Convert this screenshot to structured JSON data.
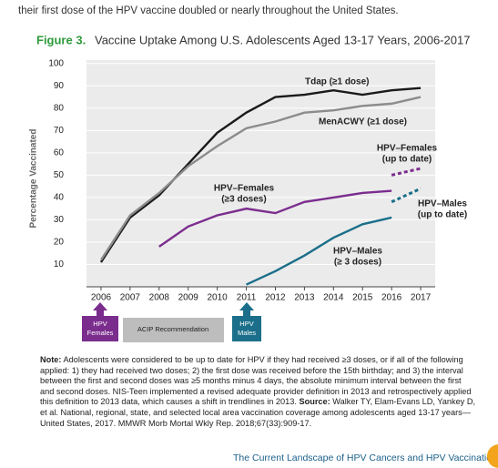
{
  "top_text": [
    "their first dose of the HPV vaccine doubled or nearly",
    "throughout the United States."
  ],
  "chart_data": {
    "type": "line",
    "title_prefix": "Figure 3.",
    "title": "Vaccine Uptake Among U.S. Adolescents Aged 13-17 Years, 2006-2017",
    "y_label": "Percentage Vaccinated",
    "x": [
      2006,
      2007,
      2008,
      2009,
      2010,
      2011,
      2012,
      2013,
      2014,
      2015,
      2016,
      2017
    ],
    "xlim": [
      2005.5,
      2017.5
    ],
    "xticks": [
      2006,
      2007,
      2008,
      2009,
      2010,
      2011,
      2012,
      2013,
      2014,
      2015,
      2016,
      2017
    ],
    "ylim": [
      0,
      100
    ],
    "yticks": [
      10,
      20,
      30,
      40,
      50,
      60,
      70,
      80,
      90,
      100
    ],
    "grid": true,
    "series": [
      {
        "label": [
          "Tdap (≥1 dose)"
        ],
        "color": "#1a1a1a",
        "dashed": false,
        "values": [
          11,
          31,
          41,
          55,
          69,
          78,
          85,
          86,
          88,
          86,
          88,
          89
        ]
      },
      {
        "label": [
          "MenACWY (≥1 dose)"
        ],
        "color": "#8c8c8c",
        "dashed": false,
        "values": [
          12,
          32,
          42,
          54,
          63,
          71,
          74,
          78,
          79,
          81,
          82,
          85
        ]
      },
      {
        "label": [
          "HPV–Females",
          "(up to date)"
        ],
        "color": "#7b2d8e",
        "dashed": true,
        "values": [
          null,
          null,
          null,
          null,
          null,
          null,
          null,
          null,
          null,
          null,
          50,
          53
        ]
      },
      {
        "label": [
          "HPV–Females",
          "(≥3 doses)"
        ],
        "color": "#7b2d8e",
        "dashed": false,
        "values": [
          null,
          null,
          18,
          27,
          32,
          35,
          33,
          38,
          40,
          42,
          43,
          null
        ]
      },
      {
        "label": [
          "HPV–Males",
          "(up to date)"
        ],
        "color": "#1b6f8a",
        "dashed": true,
        "values": [
          null,
          null,
          null,
          null,
          null,
          null,
          null,
          null,
          null,
          null,
          38,
          44
        ]
      },
      {
        "label": [
          "HPV–Males",
          "(≥ 3 doses)"
        ],
        "color": "#1b6f8a",
        "dashed": false,
        "values": [
          null,
          null,
          null,
          null,
          null,
          1,
          7,
          14,
          22,
          28,
          31,
          null
        ]
      }
    ]
  },
  "timeline": {
    "females": [
      "HPV",
      "Females"
    ],
    "acip": "ACIP Recommendation",
    "males": [
      "HPV",
      "Males"
    ]
  },
  "note": {
    "label": "Note:",
    "text": " Adolescents were considered to be up to date for HPV if they had received ≥3 doses, or if all of the following applied: 1) they had received two doses; 2) the first dose was received before the 15th birthday; and 3) the interval between the first and second doses was ≥5 months minus 4 days, the absolute minimum interval between the first and second doses. NIS-Teen implemented a revised adequate provider definition in 2013 and retrospectively applied this definition to 2013 data, which causes a shift in trendlines in 2013. ",
    "source_label": "Source:",
    "source": " Walker TY, Elam-Evans LD, Yankey D, et al. National, regional, state, and selected local area vaccination coverage among adolescents aged 13-17 years—United States, 2017. MMWR Morb Mortal Wkly Rep. 2018;67(33):909-17."
  },
  "footer": "The Current Landscape of HPV Cancers and HPV Vaccination"
}
